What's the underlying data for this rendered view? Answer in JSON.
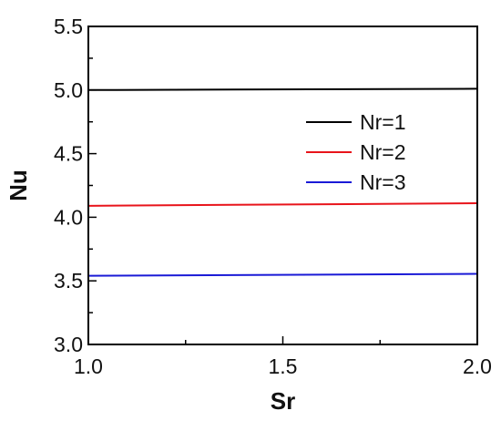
{
  "chart_data": {
    "type": "line",
    "xlabel": "Sr",
    "ylabel": "Nu",
    "xlim": [
      1.0,
      2.0
    ],
    "ylim": [
      3.0,
      5.5
    ],
    "x_ticks": [
      "1.0",
      "1.5",
      "2.0"
    ],
    "y_ticks": [
      "3.0",
      "3.5",
      "4.0",
      "4.5",
      "5.0",
      "5.5"
    ],
    "grid": false,
    "legend_position": "upper-right",
    "series": [
      {
        "name": "Nr=1",
        "color": "#000000",
        "x": [
          1.0,
          2.0
        ],
        "y": [
          5.0,
          5.01
        ]
      },
      {
        "name": "Nr=2",
        "color": "#e8141b",
        "x": [
          1.0,
          2.0
        ],
        "y": [
          4.09,
          4.11
        ]
      },
      {
        "name": "Nr=3",
        "color": "#1a1ad6",
        "x": [
          1.0,
          2.0
        ],
        "y": [
          3.54,
          3.555
        ]
      }
    ]
  }
}
